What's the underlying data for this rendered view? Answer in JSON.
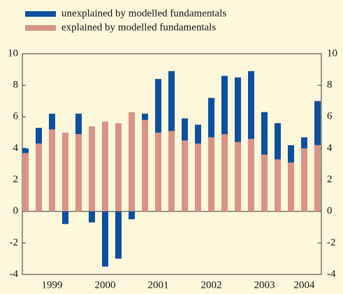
{
  "chart_data": {
    "type": "stacked_bar",
    "categories": [
      null,
      null,
      "1999",
      null,
      null,
      null,
      "2000",
      null,
      null,
      null,
      "2001",
      null,
      null,
      null,
      "2002",
      null,
      null,
      null,
      "2003",
      null,
      null,
      "2004",
      null
    ],
    "series": [
      {
        "name": "explained by modelled fundamentals",
        "color": "#d99486",
        "values": [
          3.7,
          4.3,
          5.2,
          5.0,
          4.9,
          5.4,
          5.7,
          5.6,
          6.3,
          5.8,
          5.0,
          5.1,
          4.5,
          4.3,
          4.7,
          4.9,
          4.4,
          4.6,
          3.6,
          3.3,
          3.1,
          4.0,
          4.2
        ]
      },
      {
        "name": "unexplained by modelled fundamentals",
        "color": "#0d4fa1",
        "values": [
          0.3,
          1.0,
          1.0,
          -0.8,
          1.3,
          -0.7,
          -3.5,
          -3.0,
          -0.5,
          0.4,
          3.4,
          3.8,
          1.4,
          1.2,
          2.5,
          3.7,
          4.1,
          4.3,
          2.7,
          2.3,
          1.1,
          0.7,
          2.8
        ]
      }
    ],
    "ylim": [
      -4,
      10
    ],
    "yticks": [
      -4,
      -2,
      0,
      2,
      4,
      6,
      8,
      10
    ]
  }
}
